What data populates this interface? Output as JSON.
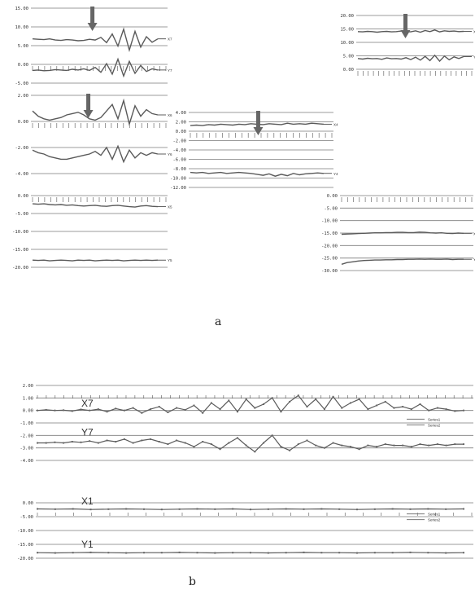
{
  "captions": [
    "a",
    "b"
  ],
  "chart_data": [
    {
      "type": "line",
      "ylim": [
        -5,
        15
      ],
      "ticks": [
        "15.00",
        "10.00",
        "5.00",
        "0.00",
        "-5.00"
      ],
      "series": [
        {
          "name": "X7",
          "values": [
            6.8,
            6.7,
            6.6,
            6.8,
            6.5,
            6.4,
            6.6,
            6.5,
            6.3,
            6.4,
            6.7,
            6.5,
            7.2,
            5.8,
            8.1,
            4.9,
            9.4,
            3.8,
            8.8,
            4.6,
            7.4,
            5.9,
            6.8
          ]
        },
        {
          "name": "Y7",
          "values": [
            -1.6,
            -1.5,
            -1.7,
            -1.6,
            -1.4,
            -1.5,
            -1.6,
            -1.3,
            -1.5,
            -1.2,
            -1.6,
            -0.8,
            -2.1,
            0.2,
            -2.6,
            1.4,
            -3.1,
            0.8,
            -2.4,
            -0.3,
            -1.9,
            -1.2,
            -1.5
          ]
        }
      ],
      "arrow_at": 0.45
    },
    {
      "type": "line",
      "ylim": [
        -4,
        2
      ],
      "ticks": [
        "2.00",
        "0.00",
        "-2.00",
        "-4.00"
      ],
      "series": [
        {
          "name": "X6",
          "values": [
            0.8,
            0.4,
            0.2,
            0.1,
            0.2,
            0.3,
            0.5,
            0.6,
            0.7,
            0.5,
            0.2,
            0.1,
            0.3,
            0.8,
            1.3,
            0.2,
            1.6,
            -0.2,
            1.2,
            0.4,
            0.9,
            0.6,
            0.5
          ]
        },
        {
          "name": "Y6",
          "values": [
            -2.2,
            -2.4,
            -2.5,
            -2.7,
            -2.8,
            -2.9,
            -2.9,
            -2.8,
            -2.7,
            -2.6,
            -2.5,
            -2.3,
            -2.6,
            -2.0,
            -2.9,
            -1.9,
            -3.1,
            -2.2,
            -2.8,
            -2.4,
            -2.6,
            -2.4,
            -2.5
          ]
        }
      ],
      "arrow_at": 0.42
    },
    {
      "type": "line",
      "ylim": [
        -20,
        0
      ],
      "ticks": [
        "0.00",
        "-5.00",
        "-10.00",
        "-15.00",
        "-20.00"
      ],
      "series": [
        {
          "name": "X5",
          "values": [
            -2.3,
            -2.4,
            -2.3,
            -2.5,
            -2.6,
            -2.5,
            -2.7,
            -2.6,
            -2.8,
            -2.9,
            -2.8,
            -2.7,
            -2.9,
            -3.0,
            -2.8,
            -2.7,
            -2.9,
            -3.1,
            -3.2,
            -2.9,
            -2.8,
            -3.0,
            -3.1
          ]
        },
        {
          "name": "Y5",
          "values": [
            -18.0,
            -18.1,
            -18.0,
            -18.2,
            -18.1,
            -18.0,
            -18.1,
            -18.2,
            -18.0,
            -18.1,
            -18.0,
            -18.2,
            -18.1,
            -18.0,
            -18.1,
            -18.0,
            -18.2,
            -18.1,
            -18.0,
            -18.1,
            -18.0,
            -18.1,
            -18.0
          ]
        }
      ]
    },
    {
      "type": "line",
      "ylim": [
        -12,
        4
      ],
      "ticks": [
        "4.00",
        "2.00",
        "0.00",
        "-2.00",
        "-4.00",
        "-6.00",
        "-8.00",
        "-10.00",
        "-12.00"
      ],
      "series": [
        {
          "name": "X4",
          "values": [
            1.2,
            1.3,
            1.2,
            1.4,
            1.3,
            1.5,
            1.4,
            1.3,
            1.5,
            1.4,
            1.6,
            1.5,
            1.4,
            1.6,
            1.5,
            1.4,
            1.7,
            1.5,
            1.6,
            1.5,
            1.7,
            1.6,
            1.5
          ]
        },
        {
          "name": "Y4",
          "values": [
            -8.8,
            -8.9,
            -8.8,
            -9.0,
            -8.9,
            -8.8,
            -9.0,
            -8.9,
            -8.8,
            -8.9,
            -9.0,
            -9.2,
            -9.4,
            -9.1,
            -9.6,
            -9.2,
            -9.5,
            -9.0,
            -9.3,
            -9.1,
            -9.0,
            -8.9,
            -9.0
          ]
        }
      ],
      "arrow_at": 0.48
    },
    {
      "type": "line",
      "ylim": [
        0,
        20
      ],
      "ticks": [
        "20.00",
        "15.00",
        "10.00",
        "5.00",
        "0.00"
      ],
      "series": [
        {
          "name": "X3",
          "values": [
            14.0,
            13.9,
            14.1,
            14.0,
            13.8,
            14.0,
            14.1,
            13.9,
            14.0,
            14.2,
            14.0,
            13.9,
            14.3,
            13.8,
            14.4,
            14.0,
            14.6,
            13.9,
            14.3,
            14.1,
            14.2,
            14.0,
            14.1
          ]
        },
        {
          "name": "Y3",
          "values": [
            4.0,
            3.8,
            4.1,
            3.9,
            4.0,
            3.7,
            4.2,
            3.9,
            4.0,
            3.8,
            4.3,
            3.6,
            4.5,
            3.4,
            4.8,
            3.2,
            5.2,
            3.0,
            4.9,
            3.5,
            4.6,
            4.0,
            4.7
          ]
        }
      ],
      "arrow_at": 0.42
    },
    {
      "type": "line",
      "ylim": [
        -30,
        0
      ],
      "ticks": [
        "0.00",
        "-5.00",
        "-10.00",
        "-15.00",
        "-20.00",
        "-25.00",
        "-30.00"
      ],
      "series": [
        {
          "name": "X2",
          "values": [
            -15.5,
            -15.4,
            -15.3,
            -15.2,
            -15.1,
            -15.0,
            -14.9,
            -14.9,
            -14.8,
            -14.8,
            -14.7,
            -14.7,
            -14.8,
            -14.8,
            -14.6,
            -14.7,
            -14.9,
            -15.0,
            -14.9,
            -15.1,
            -15.2,
            -15.0,
            -15.1
          ]
        },
        {
          "name": "Y2",
          "values": [
            -27.5,
            -26.8,
            -26.5,
            -26.2,
            -26.0,
            -25.9,
            -25.8,
            -25.8,
            -25.7,
            -25.7,
            -25.6,
            -25.6,
            -25.5,
            -25.5,
            -25.4,
            -25.5,
            -25.4,
            -25.5,
            -25.5,
            -25.4,
            -25.6,
            -25.5,
            -25.5
          ]
        }
      ]
    },
    {
      "type": "line",
      "ylim": [
        -4,
        2
      ],
      "ticks": [
        "2.00",
        "1.00",
        "0.00",
        "-1.00",
        "-2.00",
        "-3.00",
        "-4.00"
      ],
      "legend": [
        "Series1",
        "Series2"
      ],
      "series": [
        {
          "name": "X7",
          "values": [
            0.0,
            0.05,
            0.0,
            0.02,
            -0.05,
            0.08,
            0.0,
            0.1,
            -0.1,
            0.15,
            0.0,
            0.2,
            -0.2,
            0.1,
            0.3,
            -0.15,
            0.2,
            0.05,
            0.4,
            -0.2,
            0.6,
            0.1,
            0.8,
            -0.1,
            0.9,
            0.2,
            0.5,
            1.0,
            -0.1,
            0.7,
            1.2,
            0.3,
            0.9,
            0.1,
            1.1,
            0.2,
            0.6,
            0.9,
            0.1,
            0.4,
            0.7,
            0.2,
            0.3,
            0.1,
            0.5,
            0.0,
            0.2,
            0.1,
            -0.05,
            0.0
          ]
        },
        {
          "name": "Y7",
          "values": [
            -2.6,
            -2.6,
            -2.55,
            -2.6,
            -2.5,
            -2.55,
            -2.45,
            -2.6,
            -2.4,
            -2.5,
            -2.3,
            -2.6,
            -2.4,
            -2.3,
            -2.5,
            -2.7,
            -2.4,
            -2.6,
            -2.9,
            -2.5,
            -2.7,
            -3.1,
            -2.6,
            -2.2,
            -2.8,
            -3.3,
            -2.6,
            -2.0,
            -2.9,
            -3.2,
            -2.7,
            -2.4,
            -2.8,
            -3.0,
            -2.6,
            -2.8,
            -2.9,
            -3.1,
            -2.8,
            -2.9,
            -2.7,
            -2.8,
            -2.8,
            -2.9,
            -2.7,
            -2.8,
            -2.7,
            -2.8,
            -2.7,
            -2.7
          ]
        }
      ]
    },
    {
      "type": "line",
      "ylim": [
        -20,
        0
      ],
      "ticks": [
        "0.00",
        "-5.00",
        "-10.00",
        "-15.00",
        "-20.00"
      ],
      "legend": [
        "Series1",
        "Series2"
      ],
      "series": [
        {
          "name": "X1",
          "values": [
            -2.2,
            -2.3,
            -2.2,
            -2.4,
            -2.3,
            -2.2,
            -2.3,
            -2.4,
            -2.3,
            -2.2,
            -2.3,
            -2.2,
            -2.4,
            -2.3,
            -2.2,
            -2.3,
            -2.2,
            -2.3,
            -2.4,
            -2.3,
            -2.2,
            -2.3,
            -2.2,
            -2.3,
            -2.2
          ]
        },
        {
          "name": "Y1",
          "values": [
            -18.0,
            -18.1,
            -18.0,
            -17.9,
            -18.0,
            -18.1,
            -18.0,
            -18.0,
            -17.9,
            -18.0,
            -18.1,
            -18.0,
            -18.0,
            -18.1,
            -18.0,
            -17.9,
            -18.0,
            -18.0,
            -18.1,
            -18.0,
            -18.0,
            -17.9,
            -18.0,
            -18.1,
            -18.0
          ]
        }
      ]
    }
  ]
}
